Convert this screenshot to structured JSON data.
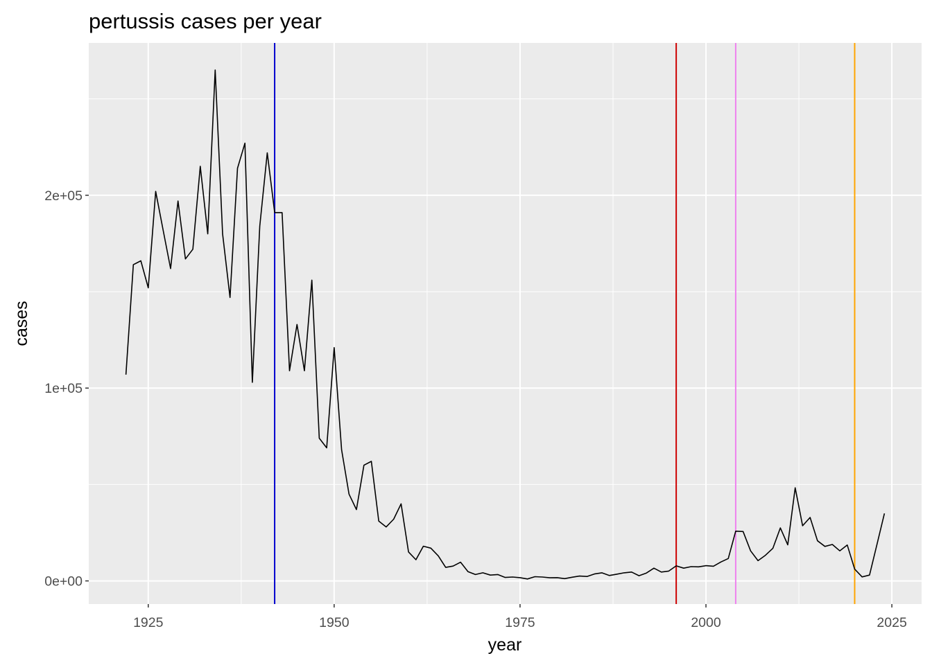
{
  "chart_data": {
    "type": "line",
    "title": "pertussis cases per year",
    "xlabel": "year",
    "ylabel": "cases",
    "xlim": [
      1917,
      2029
    ],
    "ylim": [
      -12000,
      279000
    ],
    "x_ticks": [
      1925,
      1950,
      1975,
      2000,
      2025
    ],
    "y_ticks": [
      0,
      100000,
      200000
    ],
    "y_tick_labels": [
      "0e+00",
      "1e+05",
      "2e+05"
    ],
    "grid": true,
    "background_color": "#ebebeb",
    "line_color": "#000000",
    "series": [
      {
        "x": [
          1922,
          1923,
          1924,
          1925,
          1926,
          1927,
          1928,
          1929,
          1930,
          1931,
          1932,
          1933,
          1934,
          1935,
          1936,
          1937,
          1938,
          1939,
          1940,
          1941,
          1942,
          1943,
          1944,
          1945,
          1946,
          1947,
          1948,
          1949,
          1950,
          1951,
          1952,
          1953,
          1954,
          1955,
          1956,
          1957,
          1958,
          1959,
          1960,
          1961,
          1962,
          1963,
          1964,
          1965,
          1966,
          1967,
          1968,
          1969,
          1970,
          1971,
          1972,
          1973,
          1974,
          1975,
          1976,
          1977,
          1978,
          1979,
          1980,
          1981,
          1982,
          1983,
          1984,
          1985,
          1986,
          1987,
          1988,
          1989,
          1990,
          1991,
          1992,
          1993,
          1994,
          1995,
          1996,
          1997,
          1998,
          1999,
          2000,
          2001,
          2002,
          2003,
          2004,
          2005,
          2006,
          2007,
          2008,
          2009,
          2010,
          2011,
          2012,
          2013,
          2014,
          2015,
          2016,
          2017,
          2018,
          2019,
          2020,
          2021,
          2022,
          2023,
          2024
        ],
        "y": [
          107000,
          164000,
          166000,
          152000,
          202000,
          182000,
          162000,
          197000,
          167000,
          172000,
          215000,
          180000,
          265000,
          180000,
          147000,
          214000,
          227000,
          103000,
          184000,
          222000,
          191000,
          191000,
          109000,
          133000,
          109000,
          156000,
          74000,
          69000,
          121000,
          68000,
          45000,
          37000,
          60000,
          62000,
          31000,
          28000,
          32000,
          40000,
          15000,
          11000,
          18000,
          17000,
          13000,
          7000,
          7700,
          9700,
          4800,
          3300,
          4200,
          3000,
          3300,
          1800,
          2000,
          1700,
          1000,
          2200,
          2000,
          1600,
          1700,
          1200,
          1900,
          2500,
          2300,
          3600,
          4200,
          2800,
          3500,
          4200,
          4600,
          2700,
          4100,
          6600,
          4600,
          5100,
          7800,
          6600,
          7400,
          7300,
          7900,
          7600,
          9800,
          11600,
          25800,
          25600,
          15600,
          10500,
          13300,
          16900,
          27500,
          18700,
          48300,
          28600,
          32900,
          20800,
          17900,
          18900,
          15600,
          18600,
          6100,
          2100,
          3000,
          19000,
          35000
        ]
      }
    ],
    "reference_lines": [
      {
        "x": 1942,
        "color": "#0000cd"
      },
      {
        "x": 1996,
        "color": "#cd0000"
      },
      {
        "x": 2004,
        "color": "#ee82ee"
      },
      {
        "x": 2020,
        "color": "#ffa500"
      }
    ]
  }
}
